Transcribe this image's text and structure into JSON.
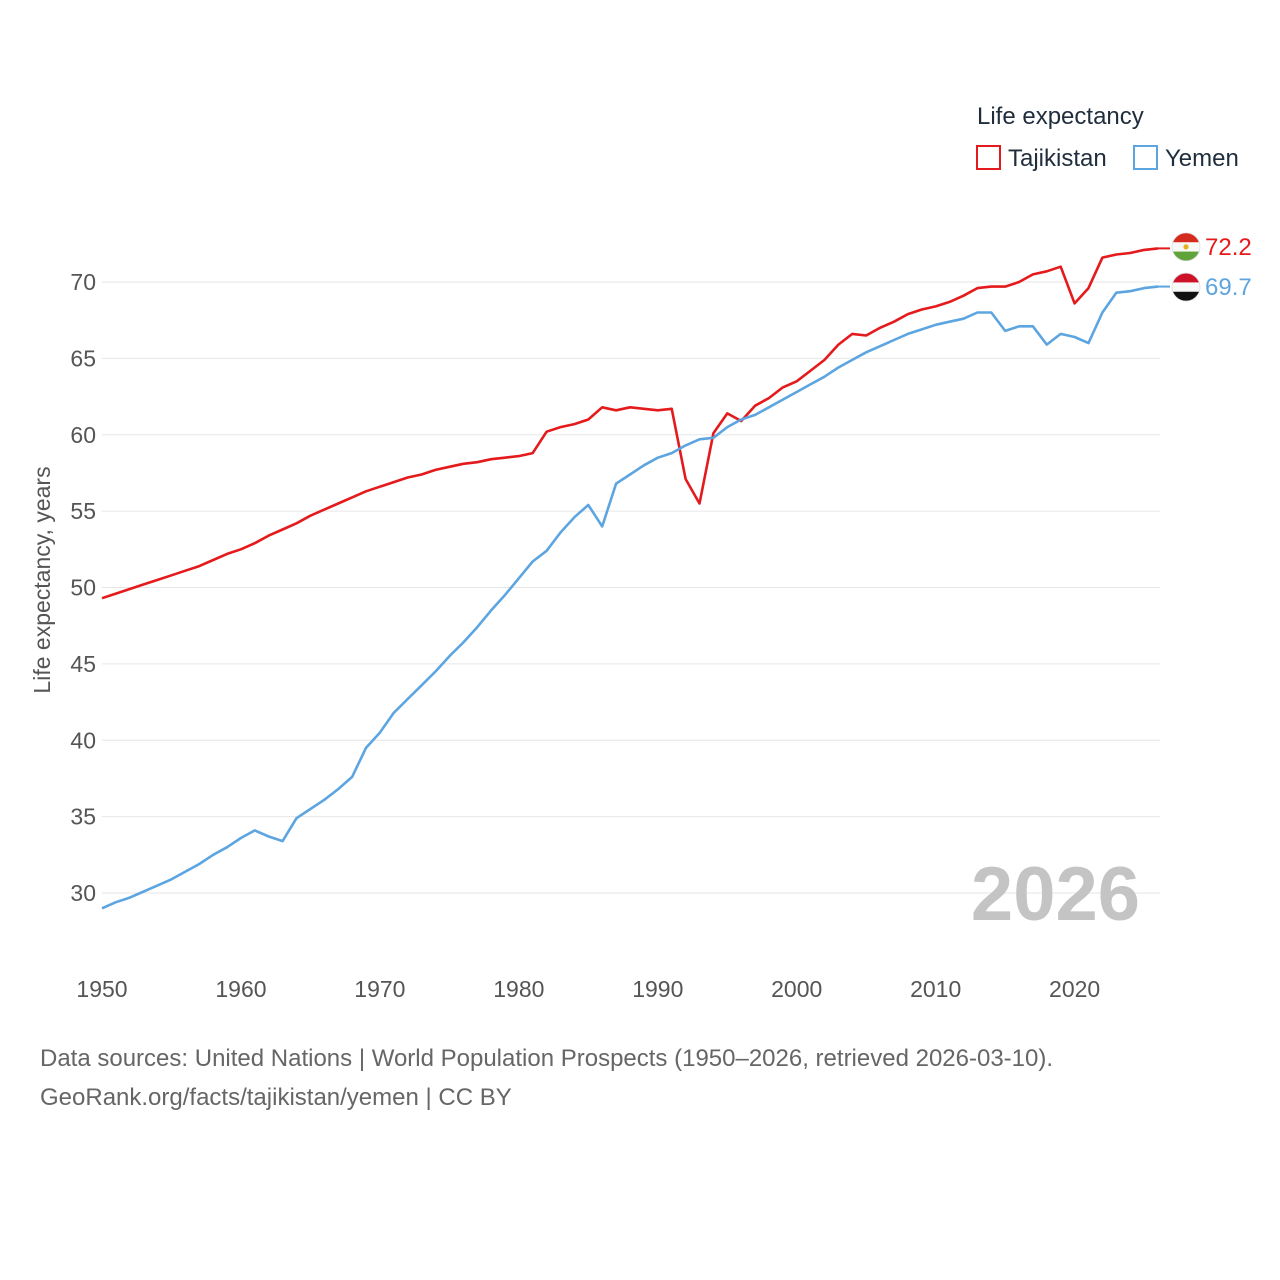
{
  "chart_data": {
    "type": "line",
    "title": "Life expectancy",
    "ylabel": "Life expectancy, years",
    "xlabel": "",
    "xlim": [
      1950,
      2026
    ],
    "ylim": [
      27,
      73
    ],
    "x_ticks": [
      "1950",
      "1960",
      "1970",
      "1980",
      "1990",
      "2000",
      "2010",
      "2020"
    ],
    "y_ticks": [
      "30",
      "35",
      "40",
      "45",
      "50",
      "55",
      "60",
      "65",
      "70"
    ],
    "year_label": "2026",
    "legend_position": "top-right",
    "series": [
      {
        "name": "Tajikistan",
        "color": "#e41a1c",
        "end_label": "72.2",
        "flag": "tajikistan-flag",
        "start_year": 1950,
        "values": [
          49.3,
          49.6,
          49.9,
          50.2,
          50.5,
          50.8,
          51.1,
          51.4,
          51.8,
          52.2,
          52.5,
          52.9,
          53.4,
          53.8,
          54.2,
          54.7,
          55.1,
          55.5,
          55.9,
          56.3,
          56.6,
          56.9,
          57.2,
          57.4,
          57.7,
          57.9,
          58.1,
          58.2,
          58.4,
          58.5,
          58.6,
          58.8,
          60.2,
          60.5,
          60.7,
          61.0,
          61.8,
          61.6,
          61.8,
          61.7,
          61.6,
          61.7,
          57.1,
          55.5,
          60.1,
          61.4,
          60.9,
          61.9,
          62.4,
          63.1,
          63.5,
          64.2,
          64.9,
          65.9,
          66.6,
          66.5,
          67.0,
          67.4,
          67.9,
          68.2,
          68.4,
          68.7,
          69.1,
          69.6,
          69.7,
          69.7,
          70.0,
          70.5,
          70.7,
          71.0,
          68.6,
          69.6,
          71.6,
          71.8,
          71.9,
          72.1,
          72.2
        ]
      },
      {
        "name": "Yemen",
        "color": "#5da5e0",
        "end_label": "69.7",
        "flag": "yemen-flag",
        "start_year": 1950,
        "values": [
          29.0,
          29.4,
          29.7,
          30.1,
          30.5,
          30.9,
          31.4,
          31.9,
          32.5,
          33.0,
          33.6,
          34.1,
          33.7,
          33.4,
          34.9,
          35.5,
          36.1,
          36.8,
          37.6,
          39.5,
          40.5,
          41.8,
          42.7,
          43.6,
          44.5,
          45.5,
          46.4,
          47.4,
          48.5,
          49.5,
          50.6,
          51.7,
          52.4,
          53.6,
          54.6,
          55.4,
          54.0,
          56.8,
          57.4,
          58.0,
          58.5,
          58.8,
          59.3,
          59.7,
          59.8,
          60.5,
          61.0,
          61.3,
          61.8,
          62.3,
          62.8,
          63.3,
          63.8,
          64.4,
          64.9,
          65.4,
          65.8,
          66.2,
          66.6,
          66.9,
          67.2,
          67.4,
          67.6,
          68.0,
          68.0,
          66.8,
          67.1,
          67.1,
          65.9,
          66.6,
          66.4,
          66.0,
          68.0,
          69.3,
          69.4,
          69.6,
          69.7
        ]
      }
    ],
    "source_lines": [
      "Data sources: United Nations | World Population Prospects (1950–2026, retrieved 2026-03-10).",
      "GeoRank.org/facts/tajikistan/yemen | CC BY"
    ]
  }
}
